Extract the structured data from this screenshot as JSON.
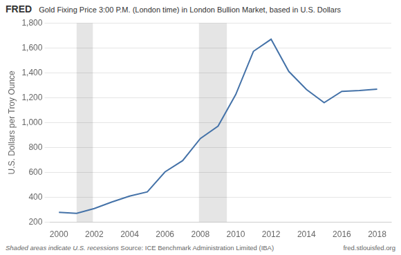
{
  "chart_data": {
    "type": "line",
    "title": "Gold Fixing Price 3:00 P.M. (London time) in London Bullion Market, based in U.S. Dollars",
    "y_label": "U.S. Dollars per Troy Ounce",
    "annotations": [
      "FRED",
      "Shaded areas indicate U.S. recessions",
      "Source: ICE Benchmark Administration Limited (IBA)",
      "fred.stlouisfed.org"
    ],
    "x": [
      2000,
      2001,
      2002,
      2003,
      2004,
      2005,
      2006,
      2007,
      2008,
      2009,
      2010,
      2011,
      2012,
      2013,
      2014,
      2015,
      2016,
      2017,
      2018
    ],
    "values": [
      279,
      271,
      310,
      363,
      410,
      444,
      604,
      695,
      872,
      972,
      1225,
      1572,
      1669,
      1411,
      1266,
      1160,
      1251,
      1257,
      1269
    ],
    "color": "#4472a8",
    "recession_bands": [
      [
        2001.0,
        2001.92
      ],
      [
        2007.92,
        2009.5
      ]
    ],
    "xlim": [
      1999.5,
      2018.8
    ],
    "xticks": [
      2000,
      2002,
      2004,
      2006,
      2008,
      2010,
      2012,
      2014,
      2016,
      2018
    ],
    "ylim": [
      200,
      1800
    ],
    "yticks": [
      200,
      400,
      600,
      800,
      {
        "value": 1000,
        "label": "1,000"
      },
      {
        "value": 1200,
        "label": "1,200"
      },
      {
        "value": 1400,
        "label": "1,400"
      },
      {
        "value": 1600,
        "label": "1,600"
      },
      {
        "value": 1800,
        "label": "1,800"
      }
    ],
    "grid": true,
    "legend": false
  }
}
